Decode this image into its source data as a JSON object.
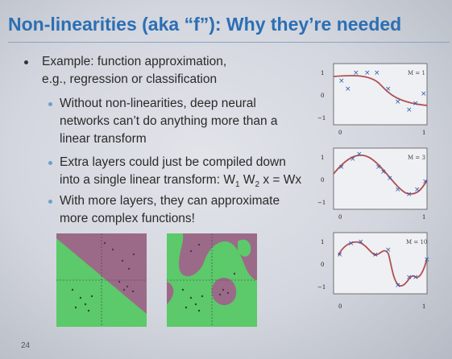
{
  "slide": {
    "title": "Non-linearities (aka “f”): Why they’re needed",
    "bullets": {
      "main_line1": "Example: function approximation,",
      "main_line2": "e.g., regression or classification",
      "sub1_line1": "Without non-linearities, deep neural",
      "sub1_line2": "networks can’t do anything more than a",
      "sub1_line3": "linear transform",
      "sub2_line1": "Extra layers could just be compiled down",
      "sub2_line2": "into a single linear transform: W",
      "sub2_sub1": "1",
      "sub2_w": " W",
      "sub2_sub2": "2",
      "sub2_rest": " x = Wx",
      "sub3_line1": "With more layers, they can approximate",
      "sub3_line2": "more complex functions!"
    },
    "page_number": "24"
  },
  "plots": [
    {
      "label": "M = 1",
      "y_ticks": [
        "1",
        "0",
        "−1"
      ],
      "x_ticks": [
        "0",
        "1"
      ]
    },
    {
      "label": "M = 3",
      "y_ticks": [
        "1",
        "0",
        "−1"
      ],
      "x_ticks": [
        "0",
        "1"
      ]
    },
    {
      "label": "M = 10",
      "y_ticks": [
        "1",
        "0",
        "−1"
      ],
      "x_ticks": [
        "0",
        "1"
      ]
    }
  ],
  "colors": {
    "title": "#2b6fb4",
    "curve": "#b05050",
    "points": "#2f58b0",
    "region_purple": "#9b6a88",
    "region_green": "#5cc96a"
  }
}
